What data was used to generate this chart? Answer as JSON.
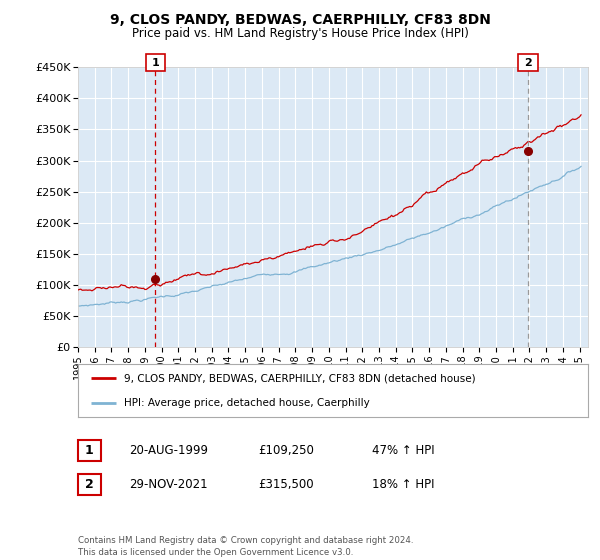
{
  "title": "9, CLOS PANDY, BEDWAS, CAERPHILLY, CF83 8DN",
  "subtitle": "Price paid vs. HM Land Registry's House Price Index (HPI)",
  "fig_bg_color": "#ffffff",
  "plot_bg_color": "#dce9f5",
  "grid_color": "#ffffff",
  "ylim": [
    0,
    450000
  ],
  "yticks": [
    0,
    50000,
    100000,
    150000,
    200000,
    250000,
    300000,
    350000,
    400000,
    450000
  ],
  "xlim_start": 1995,
  "xlim_end": 2025.5,
  "sale1_year": 1999.63,
  "sale1_price": 109250,
  "sale1_label": "1",
  "sale2_year": 2021.91,
  "sale2_price": 315500,
  "sale2_label": "2",
  "sale1_date": "20-AUG-1999",
  "sale1_pct": "47%",
  "sale2_date": "29-NOV-2021",
  "sale2_pct": "18%",
  "red_line_color": "#cc0000",
  "blue_line_color": "#7fb3d3",
  "dot_color": "#880000",
  "vline1_color": "#cc0000",
  "vline2_color": "#999999",
  "legend_label_red": "9, CLOS PANDY, BEDWAS, CAERPHILLY, CF83 8DN (detached house)",
  "legend_label_blue": "HPI: Average price, detached house, Caerphilly",
  "footer": "Contains HM Land Registry data © Crown copyright and database right 2024.\nThis data is licensed under the Open Government Licence v3.0.",
  "box_color": "#cc0000"
}
